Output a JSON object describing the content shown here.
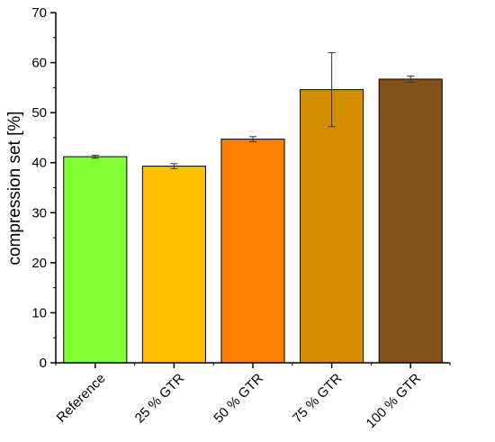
{
  "chart_data": {
    "type": "bar",
    "categories": [
      "Reference",
      "25 % GTR",
      "50 % GTR",
      "75 % GTR",
      "100 % GTR"
    ],
    "values": [
      41.2,
      39.3,
      44.7,
      54.6,
      56.7
    ],
    "errors": [
      0.3,
      0.5,
      0.5,
      7.4,
      0.6
    ],
    "colors": [
      "#80ff33",
      "#ffc000",
      "#ff8000",
      "#d49000",
      "#83521a"
    ],
    "ylabel": "compression set [%]",
    "xlabel": "",
    "ylim": [
      0,
      70
    ],
    "yticks": [
      0,
      10,
      20,
      30,
      40,
      50,
      60,
      70
    ],
    "grid": false
  }
}
